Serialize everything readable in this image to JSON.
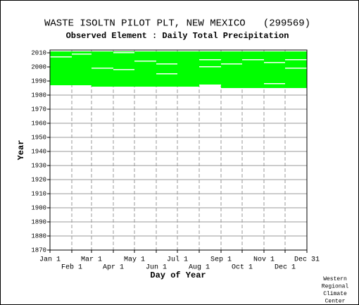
{
  "chart_data": {
    "type": "coverage",
    "title": "WASTE ISOLTN PILOT PLT, NEW MEXICO   (299569)",
    "subtitle": "Observed Element : Daily Total Precipitation",
    "x_label": "Day of Year",
    "y_label": "Year",
    "footnote": [
      "Western",
      "Regional",
      "Climate",
      "Center"
    ],
    "color": "#00ff00",
    "gap_color": "#ffffff",
    "grid": true,
    "xlim": [
      1,
      366
    ],
    "ylim": [
      1870,
      2012
    ],
    "xticks": [
      {
        "value": 1,
        "label": "Jan 1"
      },
      {
        "value": 32,
        "label": "Feb 1"
      },
      {
        "value": 60,
        "label": "Mar 1"
      },
      {
        "value": 91,
        "label": "Apr 1"
      },
      {
        "value": 121,
        "label": "May 1"
      },
      {
        "value": 152,
        "label": "Jun 1"
      },
      {
        "value": 182,
        "label": "Jul 1"
      },
      {
        "value": 213,
        "label": "Aug 1"
      },
      {
        "value": 244,
        "label": "Sep 1"
      },
      {
        "value": 274,
        "label": "Oct 1"
      },
      {
        "value": 305,
        "label": "Nov 1"
      },
      {
        "value": 335,
        "label": "Dec 1"
      },
      {
        "value": 366,
        "label": "Dec 31"
      }
    ],
    "yticks": [
      1870,
      1880,
      1890,
      1900,
      1910,
      1920,
      1930,
      1940,
      1950,
      1960,
      1970,
      1980,
      1990,
      2000,
      2010
    ],
    "bands": [
      {
        "days": [
          1,
          60
        ],
        "years": [
          1987,
          2011
        ]
      },
      {
        "days": [
          60,
          213
        ],
        "years": [
          1986,
          2011
        ]
      },
      {
        "days": [
          213,
          244
        ],
        "years": [
          1987,
          2011
        ]
      },
      {
        "days": [
          244,
          366
        ],
        "years": [
          1985,
          2011
        ]
      }
    ],
    "gaps": [
      {
        "days": [
          1,
          32
        ],
        "year": 2007
      },
      {
        "days": [
          32,
          60
        ],
        "year": 2009
      },
      {
        "days": [
          60,
          91
        ],
        "year": 1999
      },
      {
        "days": [
          91,
          121
        ],
        "year": 2010
      },
      {
        "days": [
          91,
          121
        ],
        "year": 1998
      },
      {
        "days": [
          121,
          152
        ],
        "year": 2004
      },
      {
        "days": [
          152,
          182
        ],
        "year": 2002
      },
      {
        "days": [
          152,
          182
        ],
        "year": 1995
      },
      {
        "days": [
          213,
          244
        ],
        "year": 2005
      },
      {
        "days": [
          213,
          244
        ],
        "year": 2000
      },
      {
        "days": [
          213,
          244
        ],
        "year": 1987
      },
      {
        "days": [
          244,
          274
        ],
        "year": 2002
      },
      {
        "days": [
          274,
          305
        ],
        "year": 2005
      },
      {
        "days": [
          305,
          335
        ],
        "year": 2003
      },
      {
        "days": [
          305,
          335
        ],
        "year": 1988
      },
      {
        "days": [
          335,
          366
        ],
        "year": 2005
      },
      {
        "days": [
          335,
          366
        ],
        "year": 1999
      }
    ]
  }
}
